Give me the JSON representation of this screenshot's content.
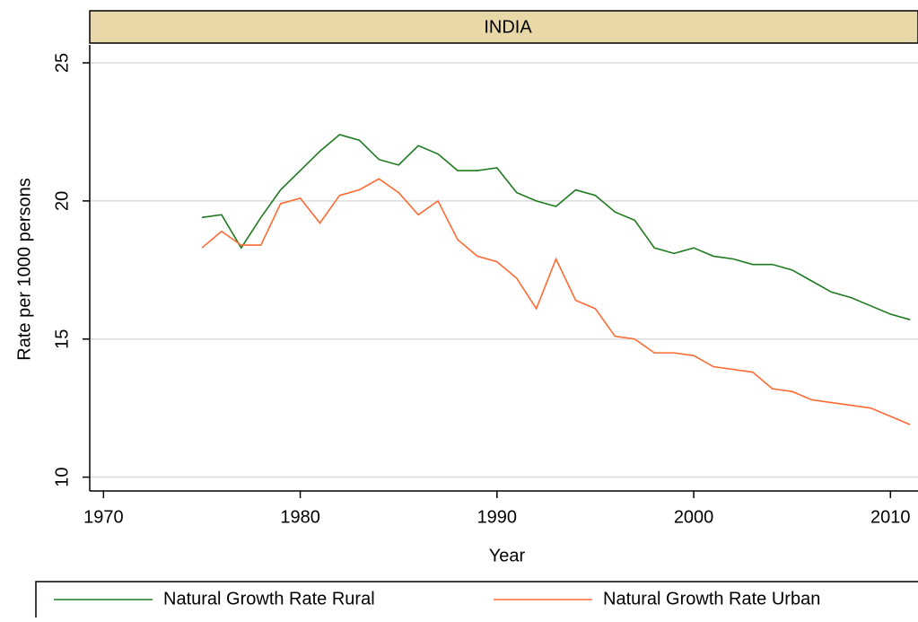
{
  "chart_data": {
    "type": "line",
    "title": "INDIA",
    "x_label": "Year",
    "y_label": "Rate per 1000 persons",
    "x": [
      1975,
      1976,
      1977,
      1978,
      1979,
      1980,
      1981,
      1982,
      1983,
      1984,
      1985,
      1986,
      1987,
      1988,
      1989,
      1990,
      1991,
      1992,
      1993,
      1994,
      1995,
      1996,
      1997,
      1998,
      1999,
      2000,
      2001,
      2002,
      2003,
      2004,
      2005,
      2006,
      2007,
      2008,
      2009,
      2010,
      2011
    ],
    "series": [
      {
        "name": "Natural Growth Rate Rural",
        "color": "#1e7a1e",
        "values": [
          19.4,
          19.5,
          18.3,
          19.4,
          20.4,
          21.1,
          21.8,
          22.4,
          22.2,
          21.5,
          21.3,
          22.0,
          21.7,
          21.1,
          21.1,
          21.2,
          20.3,
          20.0,
          19.8,
          20.4,
          20.2,
          19.6,
          19.3,
          18.3,
          18.1,
          18.3,
          18.0,
          17.9,
          17.7,
          17.7,
          17.5,
          17.1,
          16.7,
          16.5,
          16.2,
          15.9,
          15.7
        ]
      },
      {
        "name": "Natural Growth Rate Urban",
        "color": "#ff6a33",
        "values": [
          18.3,
          18.9,
          18.4,
          18.4,
          19.9,
          20.1,
          19.2,
          20.2,
          20.4,
          20.8,
          20.3,
          19.5,
          20.0,
          18.6,
          18.0,
          17.8,
          17.2,
          16.1,
          17.9,
          16.4,
          16.1,
          15.1,
          15.0,
          14.5,
          14.5,
          14.4,
          14.0,
          13.9,
          13.8,
          13.2,
          13.1,
          12.8,
          12.7,
          12.6,
          12.5,
          12.2,
          11.9
        ]
      }
    ],
    "xlim": [
      1969.3,
      2011.4
    ],
    "xticks": [
      1970,
      1980,
      1990,
      2000,
      2010
    ],
    "ylim": [
      9.5,
      25.65
    ],
    "yticks": [
      10,
      15,
      20,
      25
    ],
    "grid": true
  }
}
